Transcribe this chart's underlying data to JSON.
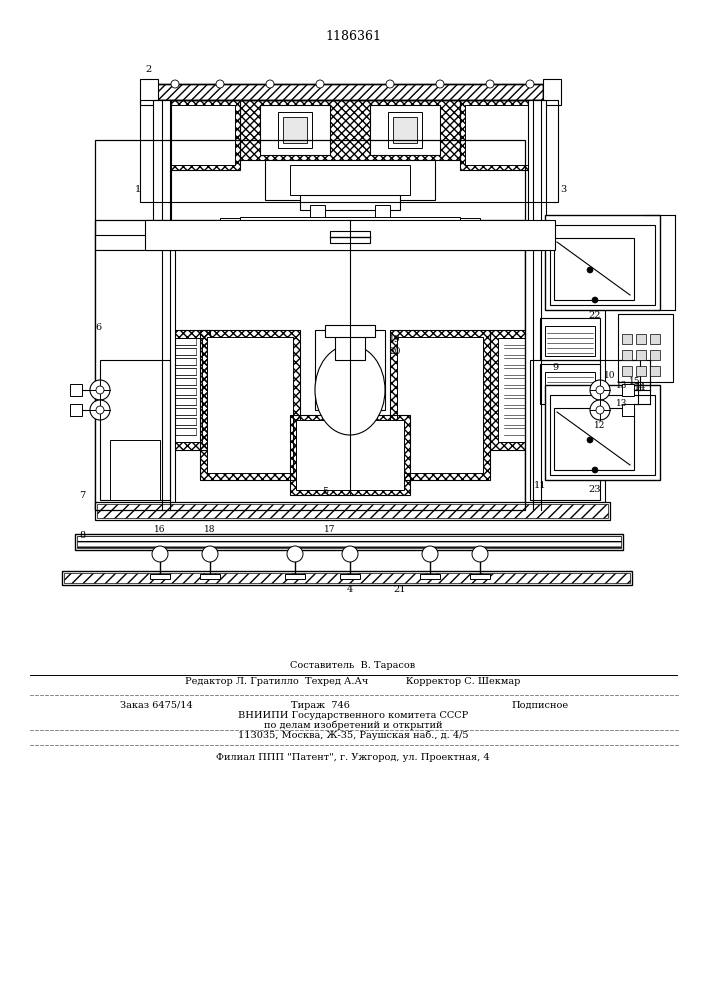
{
  "patent_number": "1186361",
  "bg_color": "#ffffff",
  "footer_lines": [
    "Составитель  В. Тарасов",
    "Редактор Л. Гратилло  Техред А.Ач            Корректор С. Шекмар",
    "Заказ 6475/14          Тираж  746              Подписное",
    "ВНИИПИ Государственного комитета СССР",
    "по делам изобретений и открытий",
    "113035, Москва, Ж-35, Раушская наб., д. 4/5",
    "Филиал ППП \"Патент\", г. Ужгород, ул. Проектная, 4"
  ]
}
